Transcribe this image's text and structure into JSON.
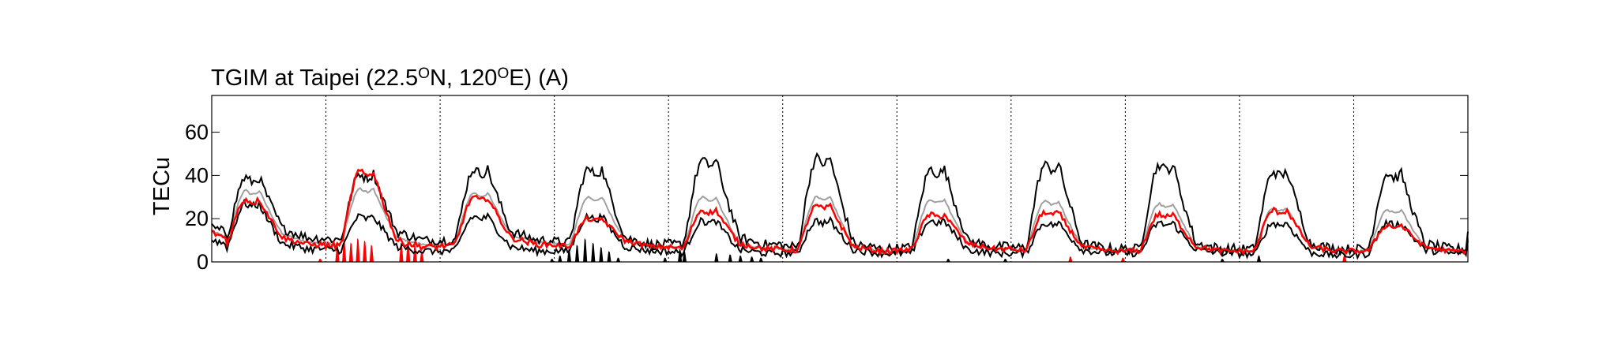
{
  "chart_data": {
    "type": "line",
    "title": {
      "parts": [
        {
          "text": "TGIM at Taipei (22.5"
        },
        {
          "text": "O",
          "sup": true
        },
        {
          "text": "N, 120"
        },
        {
          "text": "O",
          "sup": true
        },
        {
          "text": "E) (A)"
        }
      ]
    },
    "ylabel": "TECu",
    "xlabel": "",
    "ylim": [
      0,
      77
    ],
    "xlim": [
      0,
      11
    ],
    "yticks": [
      0,
      20,
      40,
      60
    ],
    "day_separators": [
      1,
      2,
      3,
      4,
      5,
      6,
      7,
      8,
      9,
      10
    ],
    "grid": "vertical dotted day separators",
    "series": [
      {
        "role": "upper bound",
        "color": "#000000",
        "peaks": [
          39,
          41,
          43,
          43,
          47,
          48,
          43,
          45,
          45,
          42,
          41
        ],
        "troughs": [
          11,
          10,
          10,
          8,
          8,
          6,
          7,
          6,
          6,
          6,
          6
        ],
        "start_value": 18,
        "end_value": 14
      },
      {
        "role": "median",
        "color": "#a0a0a0",
        "peaks": [
          33,
          34,
          32,
          30,
          30,
          30,
          29,
          28,
          27,
          25,
          24
        ],
        "troughs": [
          9,
          8,
          9,
          7,
          6,
          5,
          6,
          5,
          5,
          5,
          5
        ],
        "start_value": 16,
        "end_value": 11
      },
      {
        "role": "lower bound",
        "color": "#000000",
        "peaks": [
          27,
          21,
          21,
          21,
          19,
          19,
          19,
          18,
          18,
          18,
          18
        ],
        "troughs": [
          6,
          5,
          5,
          5,
          4,
          4,
          4,
          4,
          4,
          3,
          4
        ],
        "start_value": 12,
        "end_value": 10
      },
      {
        "role": "observed",
        "color": "#ff0000",
        "peaks": [
          29,
          42,
          30,
          20,
          24,
          26,
          22,
          23,
          22,
          24,
          17
        ],
        "troughs": [
          8,
          7,
          8,
          7,
          6,
          5,
          6,
          5,
          5,
          5,
          5
        ],
        "start_value": 16,
        "end_value": null
      }
    ],
    "anomalies": {
      "positive": {
        "color": "#ff0000",
        "events": [
          {
            "day": 0.95,
            "value": 1.5
          },
          {
            "day": 1.1,
            "value": 8
          },
          {
            "day": 1.16,
            "value": 10
          },
          {
            "day": 1.22,
            "value": 9
          },
          {
            "day": 1.28,
            "value": 11
          },
          {
            "day": 1.34,
            "value": 10
          },
          {
            "day": 1.4,
            "value": 8
          },
          {
            "day": 1.66,
            "value": 9
          },
          {
            "day": 1.72,
            "value": 11
          },
          {
            "day": 1.78,
            "value": 8
          },
          {
            "day": 1.84,
            "value": 5
          },
          {
            "day": 7.52,
            "value": 2.5
          },
          {
            "day": 7.98,
            "value": 2
          },
          {
            "day": 9.92,
            "value": 3.5
          }
        ]
      },
      "negative": {
        "color": "#000000",
        "events": [
          {
            "day": 2.98,
            "value": 1.5
          },
          {
            "day": 3.05,
            "value": 3
          },
          {
            "day": 3.13,
            "value": 6
          },
          {
            "day": 3.2,
            "value": 8
          },
          {
            "day": 3.27,
            "value": 11
          },
          {
            "day": 3.34,
            "value": 9
          },
          {
            "day": 3.41,
            "value": 7
          },
          {
            "day": 3.48,
            "value": 5
          },
          {
            "day": 3.56,
            "value": 2
          },
          {
            "day": 3.97,
            "value": 2
          },
          {
            "day": 4.1,
            "value": 6
          },
          {
            "day": 4.14,
            "value": 5
          },
          {
            "day": 4.42,
            "value": 4
          },
          {
            "day": 4.54,
            "value": 3.5
          },
          {
            "day": 4.63,
            "value": 3
          },
          {
            "day": 4.73,
            "value": 2.5
          },
          {
            "day": 4.81,
            "value": 2
          },
          {
            "day": 6.45,
            "value": 1.5
          },
          {
            "day": 6.95,
            "value": 1.5
          },
          {
            "day": 8.85,
            "value": 1.5
          },
          {
            "day": 9.17,
            "value": 3
          }
        ]
      }
    }
  }
}
